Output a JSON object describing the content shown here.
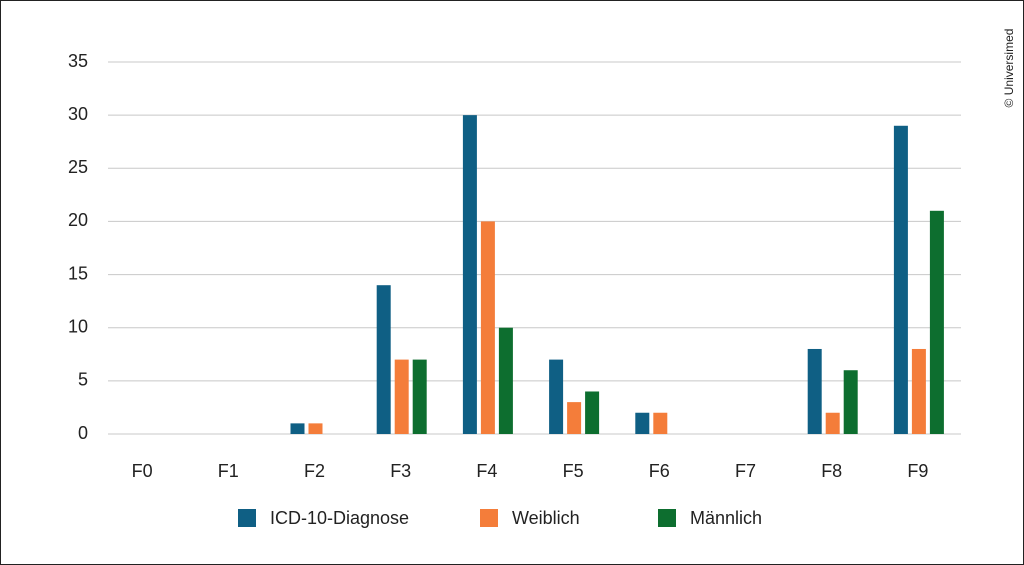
{
  "chart_data": {
    "type": "bar",
    "categories": [
      "F0",
      "F1",
      "F2",
      "F3",
      "F4",
      "F5",
      "F6",
      "F7",
      "F8",
      "F9"
    ],
    "series": [
      {
        "name": "ICD-10-Diagnose",
        "color": "#0f5f84",
        "values": [
          0,
          0,
          1,
          14,
          30,
          7,
          2,
          0,
          8,
          29
        ]
      },
      {
        "name": "Weiblich",
        "color": "#f47d3a",
        "values": [
          0,
          0,
          1,
          7,
          20,
          3,
          2,
          0,
          2,
          8
        ]
      },
      {
        "name": "Männlich",
        "color": "#0d6e2f",
        "values": [
          0,
          0,
          0,
          7,
          10,
          4,
          0,
          0,
          6,
          21
        ]
      }
    ],
    "ylim": [
      0,
      35
    ],
    "yticks": [
      0,
      5,
      10,
      15,
      20,
      25,
      30,
      35
    ],
    "grid": true,
    "legend": "bottom",
    "copyright": "© Universimed"
  }
}
